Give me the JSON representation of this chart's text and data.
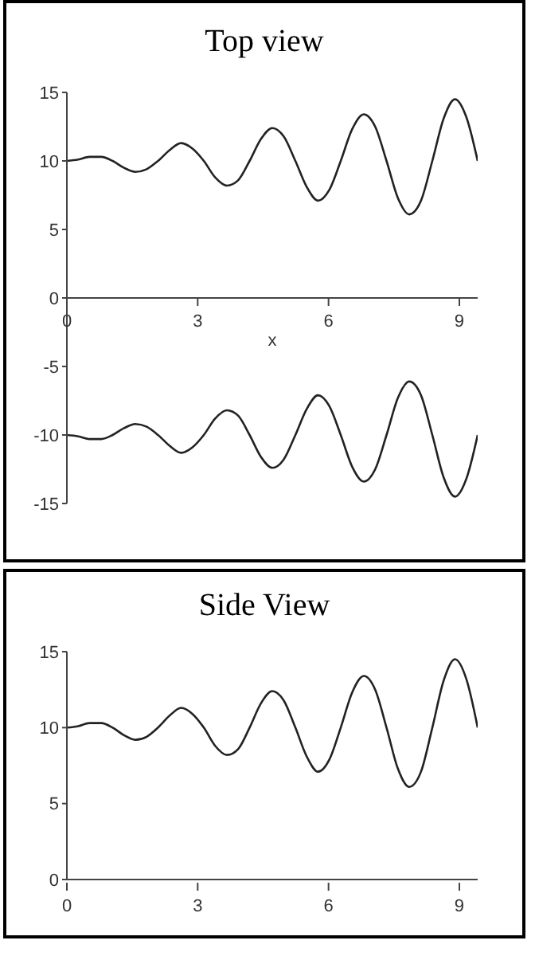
{
  "chart_data": [
    {
      "type": "line",
      "title": "Top view",
      "xlabel": "x",
      "x": [
        0,
        0.26,
        0.52,
        0.79,
        1.05,
        1.31,
        1.57,
        1.83,
        2.09,
        2.36,
        2.62,
        2.88,
        3.14,
        3.4,
        3.67,
        3.93,
        4.19,
        4.45,
        4.71,
        4.97,
        5.24,
        5.5,
        5.76,
        6.02,
        6.28,
        6.54,
        6.81,
        7.07,
        7.33,
        7.59,
        7.85,
        8.12,
        8.38,
        8.64,
        8.9,
        9.16,
        9.42
      ],
      "xlim": [
        0,
        9.42
      ],
      "xticks": [
        0,
        3,
        6,
        9
      ],
      "ylim": [
        -15,
        15
      ],
      "yticks": [
        -15,
        -10,
        -5,
        0,
        5,
        10,
        15
      ],
      "marker": "none",
      "series": [
        {
          "color": "#222222",
          "values": [
            10,
            10.1,
            10.3,
            10.3,
            10,
            9.5,
            9.2,
            9.4,
            10,
            10.8,
            11.3,
            10.9,
            10,
            8.8,
            8.2,
            8.6,
            10,
            11.6,
            12.4,
            11.8,
            10,
            8.1,
            7.1,
            7.9,
            10,
            12.3,
            13.4,
            12.5,
            10,
            7.3,
            6.1,
            7.1,
            10,
            13.1,
            14.5,
            13.2,
            10
          ]
        },
        {
          "color": "#222222",
          "values": [
            -10,
            -10.1,
            -10.3,
            -10.3,
            -10,
            -9.5,
            -9.2,
            -9.4,
            -10,
            -10.8,
            -11.3,
            -10.9,
            -10,
            -8.8,
            -8.2,
            -8.6,
            -10,
            -11.6,
            -12.4,
            -11.8,
            -10,
            -8.1,
            -7.1,
            -7.9,
            -10,
            -12.3,
            -13.4,
            -12.5,
            -10,
            -7.3,
            -6.1,
            -7.1,
            -10,
            -13.1,
            -14.5,
            -13.2,
            -10
          ]
        }
      ]
    },
    {
      "type": "line",
      "title": "Side View",
      "x": [
        0,
        0.26,
        0.52,
        0.79,
        1.05,
        1.31,
        1.57,
        1.83,
        2.09,
        2.36,
        2.62,
        2.88,
        3.14,
        3.4,
        3.67,
        3.93,
        4.19,
        4.45,
        4.71,
        4.97,
        5.24,
        5.5,
        5.76,
        6.02,
        6.28,
        6.54,
        6.81,
        7.07,
        7.33,
        7.59,
        7.85,
        8.12,
        8.38,
        8.64,
        8.9,
        9.16,
        9.42
      ],
      "xlim": [
        0,
        9.42
      ],
      "xticks": [
        0,
        3,
        6,
        9
      ],
      "ylim": [
        0,
        15
      ],
      "yticks": [
        0,
        5,
        10,
        15
      ],
      "marker": "none",
      "series": [
        {
          "color": "#222222",
          "values": [
            10,
            10.1,
            10.3,
            10.3,
            10,
            9.5,
            9.2,
            9.4,
            10,
            10.8,
            11.3,
            10.9,
            10,
            8.8,
            8.2,
            8.6,
            10,
            11.6,
            12.4,
            11.8,
            10,
            8.1,
            7.1,
            7.9,
            10,
            12.3,
            13.4,
            12.5,
            10,
            7.3,
            6.1,
            7.1,
            10,
            13.1,
            14.5,
            13.2,
            10
          ]
        }
      ]
    }
  ]
}
